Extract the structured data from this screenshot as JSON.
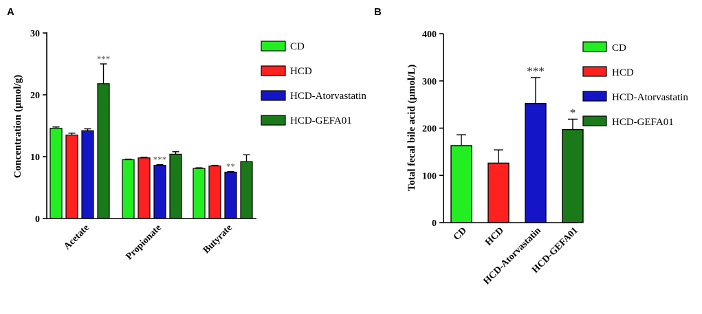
{
  "figure": {
    "colors": {
      "CD": "#22ee22",
      "HCD": "#ff2020",
      "HCD-Atorvastatin": "#1515c8",
      "HCD-GEFA01": "#1a7a1a"
    }
  },
  "chart_data": [
    {
      "panel": "A",
      "type": "bar",
      "title": "",
      "xlabel": "",
      "ylabel": "Concentration (μmol/g)",
      "ylim": [
        0,
        30
      ],
      "yticks": [
        0,
        10,
        20,
        30
      ],
      "categories": [
        "Acetate",
        "Propionate",
        "Butyrate"
      ],
      "series": [
        {
          "name": "CD",
          "values": [
            14.6,
            9.5,
            8.1
          ],
          "errors": [
            0.2,
            0.1,
            0.1
          ],
          "sig": [
            "",
            "",
            ""
          ]
        },
        {
          "name": "HCD",
          "values": [
            13.5,
            9.8,
            8.5
          ],
          "errors": [
            0.3,
            0.1,
            0.1
          ],
          "sig": [
            "",
            "",
            ""
          ]
        },
        {
          "name": "HCD-Atorvastatin",
          "values": [
            14.2,
            8.6,
            7.5
          ],
          "errors": [
            0.3,
            0.1,
            0.1
          ],
          "sig": [
            "",
            "***",
            "**"
          ]
        },
        {
          "name": "HCD-GEFA01",
          "values": [
            21.8,
            10.4,
            9.2
          ],
          "errors": [
            3.2,
            0.4,
            1.1
          ],
          "sig": [
            "***",
            "",
            ""
          ]
        }
      ],
      "legend": {
        "position": "right",
        "entries": [
          "CD",
          "HCD",
          "HCD-Atorvastatin",
          "HCD-GEFA01"
        ]
      }
    },
    {
      "panel": "B",
      "type": "bar",
      "title": "",
      "xlabel": "",
      "ylabel": "Total fecal bile acid (μmol/L)",
      "ylim": [
        0,
        400
      ],
      "yticks": [
        0,
        100,
        200,
        300,
        400
      ],
      "categories": [
        "CD",
        "HCD",
        "HCD-Atorvastatin",
        "HCD-GEFA01"
      ],
      "values": [
        163,
        126,
        252,
        197
      ],
      "errors": [
        23,
        28,
        55,
        22
      ],
      "sig": [
        "",
        "",
        "***",
        "*"
      ],
      "legend": {
        "position": "right",
        "entries": [
          "CD",
          "HCD",
          "HCD-Atorvastatin",
          "HCD-GEFA01"
        ]
      }
    }
  ]
}
